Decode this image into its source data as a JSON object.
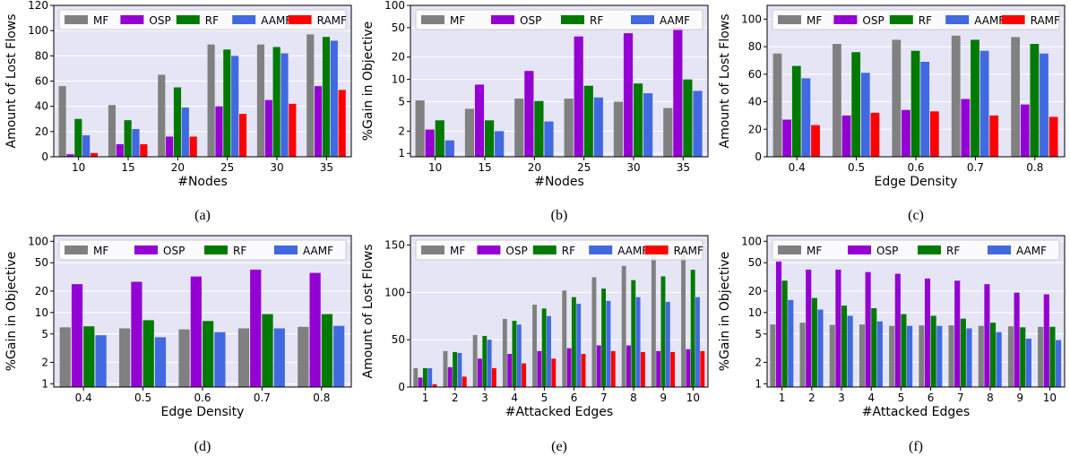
{
  "colors": {
    "MF": "#808080",
    "OSP": "#9400D3",
    "RF": "#007A00",
    "AAMF": "#4169E1",
    "RAMF": "#FF0000",
    "plot_bg": "#E5E5F5"
  },
  "chart_data": [
    {
      "id": "a",
      "caption": "(a)",
      "type": "bar",
      "xlabel": "#Nodes",
      "ylabel": "Amount of Lost Flows",
      "categories": [
        "10",
        "15",
        "20",
        "25",
        "30",
        "35"
      ],
      "yscale": "linear",
      "ylim": [
        0,
        120
      ],
      "yticks": [
        0,
        20,
        40,
        60,
        80,
        100,
        120
      ],
      "grid": true,
      "legend": "top",
      "series": [
        {
          "name": "MF",
          "values": [
            56,
            41,
            65,
            89,
            89,
            97
          ]
        },
        {
          "name": "OSP",
          "values": [
            2,
            10,
            16,
            40,
            45,
            56
          ]
        },
        {
          "name": "RF",
          "values": [
            30,
            29,
            55,
            85,
            87,
            95
          ]
        },
        {
          "name": "AAMF",
          "values": [
            17,
            22,
            39,
            80,
            82,
            92
          ]
        },
        {
          "name": "RAMF",
          "values": [
            3,
            10,
            16,
            34,
            42,
            53
          ]
        }
      ]
    },
    {
      "id": "b",
      "caption": "(b)",
      "type": "bar",
      "xlabel": "#Nodes",
      "ylabel": "%Gain in Objective",
      "categories": [
        "10",
        "15",
        "20",
        "25",
        "30",
        "35"
      ],
      "yscale": "log",
      "ylim": [
        0.9,
        100
      ],
      "yticks": [
        1,
        2,
        5,
        10,
        20,
        50,
        100
      ],
      "grid": true,
      "legend": "top",
      "series": [
        {
          "name": "MF",
          "values": [
            5.2,
            4.0,
            5.5,
            5.5,
            5.0,
            4.1
          ]
        },
        {
          "name": "OSP",
          "values": [
            2.1,
            8.5,
            13,
            38,
            42,
            50
          ]
        },
        {
          "name": "RF",
          "values": [
            2.8,
            2.8,
            5.1,
            8.2,
            8.8,
            10
          ]
        },
        {
          "name": "AAMF",
          "values": [
            1.5,
            2.0,
            2.7,
            5.7,
            6.5,
            7.0
          ]
        }
      ]
    },
    {
      "id": "c",
      "caption": "(c)",
      "type": "bar",
      "xlabel": "Edge Density",
      "ylabel": "Amount of Lost Flows",
      "categories": [
        "0.4",
        "0.5",
        "0.6",
        "0.7",
        "0.8"
      ],
      "yscale": "linear",
      "ylim": [
        0,
        110
      ],
      "yticks": [
        0,
        20,
        40,
        60,
        80,
        100
      ],
      "grid": true,
      "legend": "top",
      "series": [
        {
          "name": "MF",
          "values": [
            75,
            82,
            85,
            88,
            87
          ]
        },
        {
          "name": "OSP",
          "values": [
            27,
            30,
            34,
            42,
            38
          ]
        },
        {
          "name": "RF",
          "values": [
            66,
            76,
            77,
            85,
            82
          ]
        },
        {
          "name": "AAMF",
          "values": [
            57,
            61,
            69,
            77,
            75
          ]
        },
        {
          "name": "RAMF",
          "values": [
            23,
            32,
            33,
            30,
            29
          ]
        }
      ]
    },
    {
      "id": "d",
      "caption": "(d)",
      "type": "bar",
      "xlabel": "Edge Density",
      "ylabel": "%Gain in Objective",
      "categories": [
        "0.4",
        "0.5",
        "0.6",
        "0.7",
        "0.8"
      ],
      "yscale": "log",
      "ylim": [
        0.9,
        120
      ],
      "yticks": [
        1,
        2,
        5,
        10,
        20,
        50,
        100
      ],
      "grid": true,
      "legend": "top",
      "series": [
        {
          "name": "MF",
          "values": [
            6.2,
            6.0,
            5.8,
            6.0,
            6.3
          ]
        },
        {
          "name": "OSP",
          "values": [
            25,
            27,
            32,
            40,
            36
          ]
        },
        {
          "name": "RF",
          "values": [
            6.4,
            7.8,
            7.6,
            9.5,
            9.5
          ]
        },
        {
          "name": "AAMF",
          "values": [
            4.8,
            4.5,
            5.3,
            6.0,
            6.5
          ]
        }
      ]
    },
    {
      "id": "e",
      "caption": "(e)",
      "type": "bar",
      "xlabel": "#Attacked Edges",
      "ylabel": "Amount of Lost Flows",
      "categories": [
        "1",
        "2",
        "3",
        "4",
        "5",
        "6",
        "7",
        "8",
        "9",
        "10"
      ],
      "yscale": "linear",
      "ylim": [
        0,
        160
      ],
      "yticks": [
        0,
        50,
        100,
        150
      ],
      "grid": true,
      "legend": "top",
      "series": [
        {
          "name": "MF",
          "values": [
            20,
            38,
            55,
            72,
            87,
            102,
            116,
            128,
            139,
            148
          ]
        },
        {
          "name": "OSP",
          "values": [
            10,
            21,
            30,
            35,
            38,
            41,
            44,
            44,
            38,
            40
          ]
        },
        {
          "name": "RF",
          "values": [
            20,
            37,
            54,
            70,
            83,
            95,
            104,
            113,
            117,
            124
          ]
        },
        {
          "name": "AAMF",
          "values": [
            20,
            36,
            50,
            66,
            75,
            88,
            91,
            95,
            90,
            95
          ]
        },
        {
          "name": "RAMF",
          "values": [
            3,
            11,
            20,
            25,
            30,
            35,
            38,
            37,
            37,
            38
          ]
        }
      ]
    },
    {
      "id": "f",
      "caption": "(f)",
      "type": "bar",
      "xlabel": "#Attacked Edges",
      "ylabel": "%Gain in Objective",
      "categories": [
        "1",
        "2",
        "3",
        "4",
        "5",
        "6",
        "7",
        "8",
        "9",
        "10"
      ],
      "yscale": "log",
      "ylim": [
        0.9,
        120
      ],
      "yticks": [
        1,
        2,
        5,
        10,
        20,
        50,
        100
      ],
      "grid": true,
      "legend": "top",
      "series": [
        {
          "name": "MF",
          "values": [
            6.8,
            7.2,
            6.7,
            6.8,
            6.5,
            6.6,
            6.6,
            6.5,
            6.4,
            6.3
          ]
        },
        {
          "name": "OSP",
          "values": [
            52,
            40,
            40,
            37,
            35,
            30,
            28,
            25,
            19,
            18
          ]
        },
        {
          "name": "RF",
          "values": [
            28,
            16,
            12.5,
            11.5,
            9.5,
            9.0,
            8.2,
            7.2,
            6.2,
            6.3
          ]
        },
        {
          "name": "AAMF",
          "values": [
            15,
            11,
            9.0,
            7.5,
            6.5,
            6.5,
            6.0,
            5.3,
            4.3,
            4.1
          ]
        }
      ]
    }
  ]
}
